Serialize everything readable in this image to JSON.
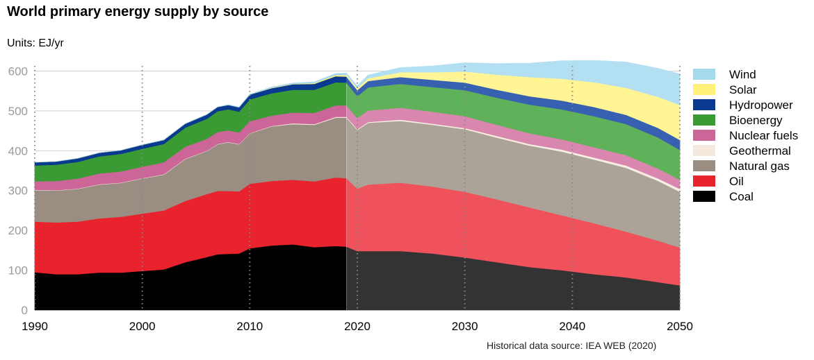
{
  "chart_data": {
    "type": "area",
    "title": "World primary energy supply by source",
    "subtitle": "Units: EJ/yr",
    "source": "Historical data source: IEA WEB (2020)",
    "xlabel": "",
    "ylabel": "EJ/yr",
    "xlim": [
      1990,
      2050
    ],
    "ylim": [
      0,
      620
    ],
    "xticks": [
      1990,
      2000,
      2010,
      2020,
      2030,
      2040,
      2050
    ],
    "yticks": [
      0,
      100,
      200,
      300,
      400,
      500,
      600
    ],
    "historical_until": 2019,
    "legend_position": "right",
    "stacked": true,
    "x": [
      1990,
      1992,
      1994,
      1996,
      1998,
      2000,
      2002,
      2004,
      2006,
      2007,
      2008,
      2009,
      2010,
      2012,
      2014,
      2016,
      2018,
      2019,
      2020,
      2021,
      2024,
      2027,
      2030,
      2033,
      2036,
      2039,
      2042,
      2045,
      2048,
      2050
    ],
    "series": [
      {
        "name": "Coal",
        "color": "#000000",
        "forecast_color": "#333333",
        "values": [
          95,
          90,
          90,
          94,
          94,
          98,
          102,
          120,
          133,
          140,
          141,
          142,
          155,
          162,
          165,
          158,
          161,
          159,
          148,
          148,
          148,
          142,
          132,
          120,
          108,
          100,
          90,
          82,
          70,
          62
        ]
      },
      {
        "name": "Oil",
        "color": "#e8232e",
        "forecast_color": "#ef525b",
        "values": [
          127,
          130,
          132,
          136,
          140,
          144,
          148,
          154,
          158,
          159,
          158,
          156,
          162,
          162,
          162,
          165,
          172,
          172,
          157,
          167,
          172,
          168,
          165,
          158,
          150,
          138,
          128,
          115,
          104,
          95
        ]
      },
      {
        "name": "Natural gas",
        "color": "#9a8d82",
        "forecast_color": "#aca398",
        "values": [
          79,
          80,
          82,
          85,
          85,
          88,
          90,
          105,
          108,
          117,
          122,
          118,
          126,
          137,
          140,
          142,
          150,
          152,
          147,
          155,
          155,
          155,
          157,
          155,
          155,
          160,
          160,
          160,
          150,
          140
        ]
      },
      {
        "name": "Geothermal",
        "color": "#f4e9dc",
        "forecast_color": "#f6ede3",
        "values": [
          1,
          1,
          1,
          1,
          1,
          1,
          1,
          1,
          1,
          1,
          1,
          1,
          1,
          1,
          2,
          2,
          2,
          2,
          2,
          2,
          3,
          3,
          3,
          4,
          4,
          5,
          5,
          6,
          6,
          7
        ]
      },
      {
        "name": "Nuclear fuels",
        "color": "#cc6699",
        "forecast_color": "#d987ae",
        "values": [
          21,
          23,
          25,
          27,
          28,
          29,
          30,
          30,
          30,
          30,
          29,
          29,
          30,
          26,
          27,
          28,
          29,
          29,
          28,
          29,
          30,
          30,
          30,
          28,
          27,
          26,
          26,
          26,
          25,
          23
        ]
      },
      {
        "name": "Bioenergy",
        "color": "#3a9b35",
        "forecast_color": "#5fb15a",
        "values": [
          40,
          41,
          42,
          43,
          44,
          45,
          46,
          48,
          50,
          52,
          53,
          52,
          55,
          56,
          57,
          58,
          58,
          57,
          55,
          58,
          60,
          62,
          65,
          68,
          72,
          75,
          78,
          78,
          78,
          75
        ]
      },
      {
        "name": "Hydropower",
        "color": "#0a3a8f",
        "forecast_color": "#3860b0",
        "values": [
          8,
          8,
          9,
          9,
          9,
          10,
          10,
          10,
          11,
          11,
          11,
          11,
          12,
          13,
          14,
          15,
          15,
          15,
          15,
          16,
          17,
          18,
          19,
          20,
          21,
          22,
          23,
          23,
          24,
          25
        ]
      },
      {
        "name": "Solar",
        "color": "#fff17a",
        "forecast_color": "#fff594",
        "values": [
          0,
          0,
          0,
          0,
          0,
          0,
          0,
          0,
          0,
          0,
          0,
          0,
          0,
          1,
          1,
          2,
          3,
          4,
          5,
          7,
          12,
          19,
          28,
          38,
          48,
          55,
          62,
          68,
          78,
          88
        ]
      },
      {
        "name": "Wind",
        "color": "#a6d8ee",
        "forecast_color": "#b3dff2",
        "values": [
          0,
          0,
          0,
          0,
          0,
          0,
          0,
          0,
          0,
          0,
          1,
          1,
          1,
          2,
          2,
          3,
          4,
          5,
          6,
          8,
          12,
          16,
          22,
          28,
          35,
          45,
          55,
          65,
          72,
          78
        ]
      }
    ]
  }
}
